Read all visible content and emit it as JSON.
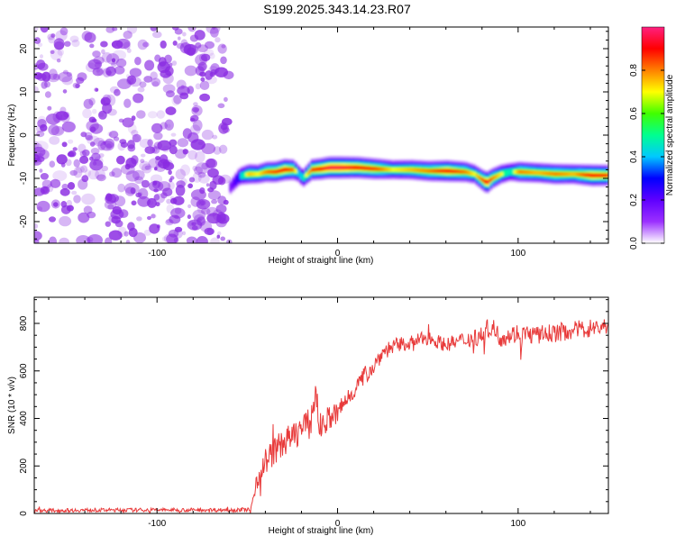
{
  "title": "S199.2025.343.14.23.R07",
  "chart_data": [
    {
      "type": "heatmap",
      "xlabel": "Height of straight line (km)",
      "ylabel": "Frequency (Hz)",
      "xlim": [
        -168,
        150
      ],
      "ylim": [
        -25,
        25
      ],
      "xticks": [
        -100,
        0,
        100
      ],
      "yticks": [
        20,
        10,
        0,
        -10,
        -20
      ],
      "noise_region_x": [
        -168,
        -60
      ],
      "ridge": {
        "x": [
          -60,
          -55,
          -50,
          -45,
          -40,
          -35,
          -30,
          -25,
          -22,
          -20,
          -15,
          -10,
          -5,
          0,
          10,
          20,
          30,
          40,
          50,
          60,
          70,
          75,
          80,
          82,
          85,
          90,
          95,
          100,
          110,
          120,
          130,
          140,
          150
        ],
        "freq": [
          -12,
          -9.5,
          -9,
          -9,
          -8.5,
          -8.5,
          -8,
          -8,
          -9,
          -10,
          -8,
          -7.8,
          -7.5,
          -7.5,
          -7.5,
          -7.8,
          -8,
          -8,
          -8.3,
          -8.3,
          -8.5,
          -9,
          -10.5,
          -11,
          -10,
          -9,
          -8.5,
          -8.5,
          -8.7,
          -9,
          -9,
          -9.3,
          -9.3
        ],
        "amplitude": [
          0.3,
          0.55,
          0.75,
          0.7,
          0.8,
          0.85,
          0.9,
          0.8,
          0.5,
          0.6,
          0.85,
          0.9,
          0.95,
          0.95,
          0.9,
          0.85,
          0.7,
          0.75,
          0.8,
          0.9,
          0.8,
          0.7,
          0.85,
          0.95,
          0.8,
          0.7,
          0.6,
          0.8,
          0.75,
          0.8,
          0.75,
          0.9,
          0.85
        ]
      },
      "colorbar": {
        "label": "Normalized spectral amplitude",
        "range": [
          0.0,
          1.0
        ],
        "ticks": [
          "0.0",
          "0.2",
          "0.4",
          "0.6",
          "0.8"
        ],
        "tick_values": [
          0.0,
          0.2,
          0.4,
          0.6,
          0.8
        ],
        "stops": [
          "#ffffff",
          "#9b30ff",
          "#5f00ff",
          "#0000ff",
          "#00c8ff",
          "#00ff90",
          "#40ff00",
          "#ffff00",
          "#ff8000",
          "#ff0000",
          "#ff2080"
        ]
      },
      "noise_color": "#8a2be2"
    },
    {
      "type": "line",
      "xlabel": "Height of straight line (km)",
      "ylabel": "SNR (10 * v/v)",
      "xlim": [
        -168,
        150
      ],
      "ylim": [
        0,
        910
      ],
      "xticks": [
        -100,
        0,
        100
      ],
      "yticks": [
        0,
        200,
        400,
        600,
        800
      ],
      "series": [
        {
          "name": "SNR",
          "color": "#e83a3a",
          "x": [
            -168,
            -140,
            -100,
            -60,
            -48,
            -45,
            -40,
            -35,
            -30,
            -25,
            -20,
            -15,
            -12,
            -10,
            -5,
            0,
            5,
            10,
            15,
            20,
            25,
            30,
            40,
            50,
            60,
            70,
            80,
            85,
            90,
            100,
            110,
            120,
            130,
            140,
            150
          ],
          "y": [
            12,
            14,
            15,
            15,
            16,
            140,
            220,
            260,
            300,
            320,
            360,
            380,
            520,
            360,
            400,
            420,
            480,
            530,
            580,
            620,
            680,
            700,
            720,
            740,
            710,
            730,
            750,
            790,
            740,
            760,
            750,
            760,
            770,
            780,
            790
          ],
          "noise": [
            8,
            8,
            8,
            8,
            10,
            45,
            60,
            60,
            60,
            60,
            60,
            65,
            60,
            60,
            55,
            50,
            45,
            40,
            40,
            35,
            35,
            35,
            30,
            30,
            30,
            35,
            40,
            45,
            40,
            40,
            40,
            40,
            40,
            40,
            35
          ]
        }
      ]
    }
  ]
}
